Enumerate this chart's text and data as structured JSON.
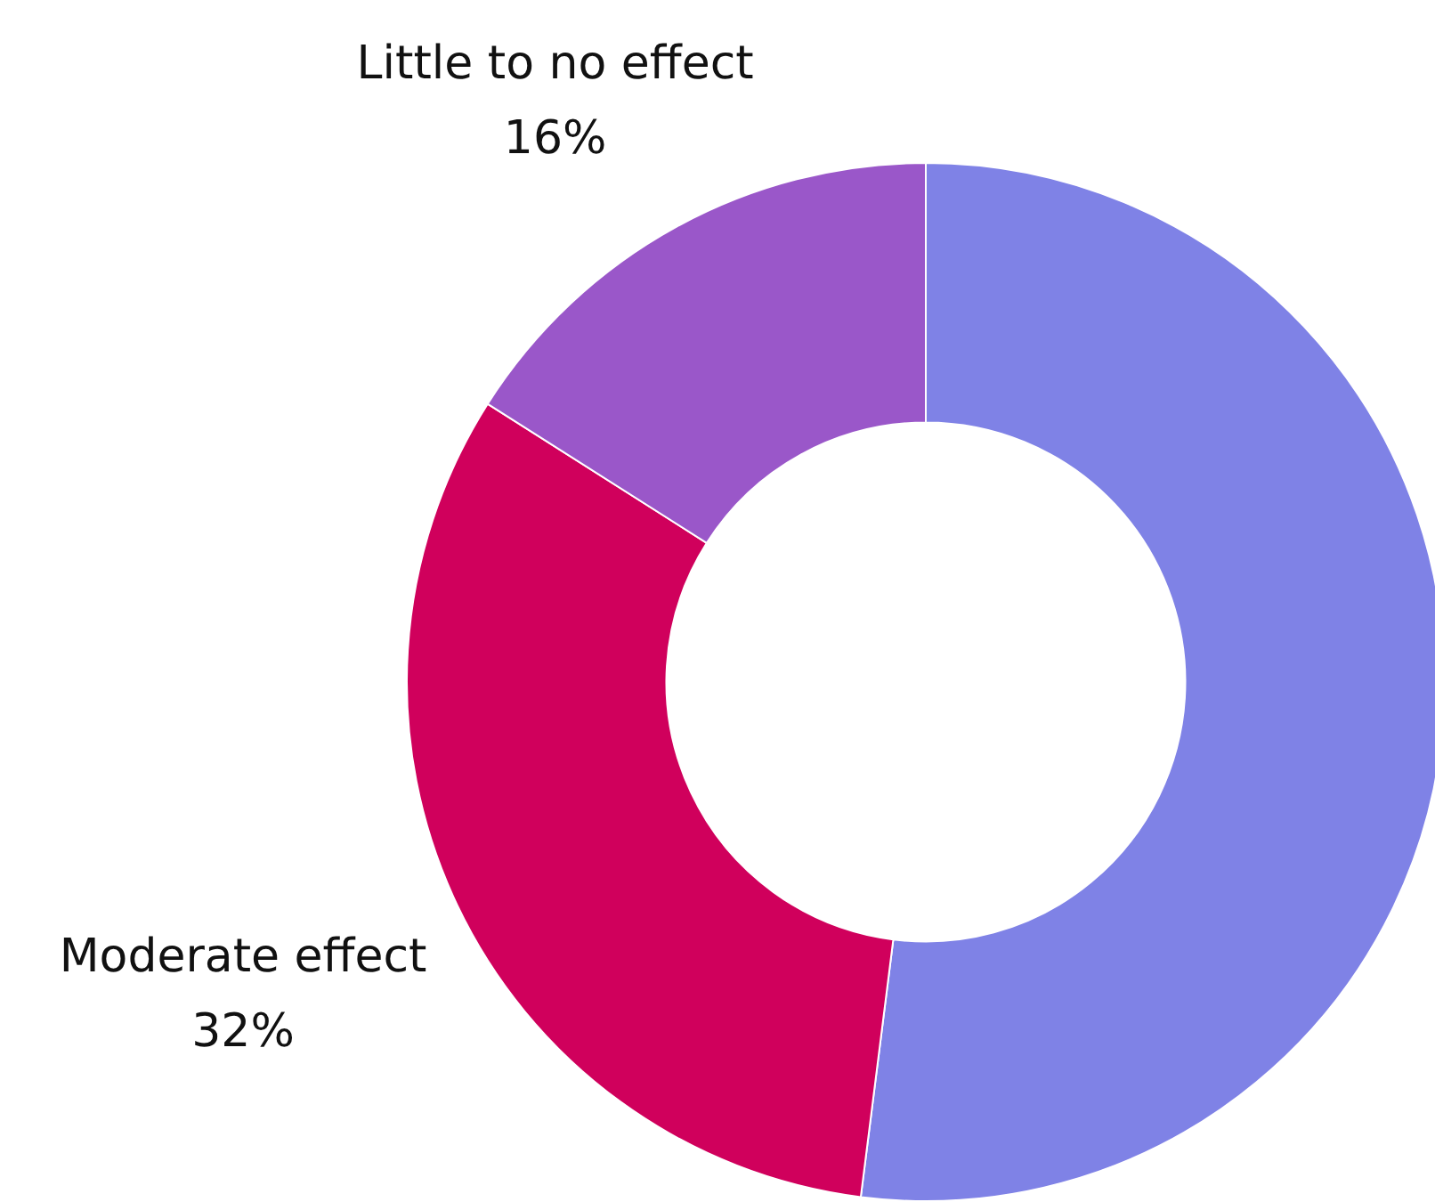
{
  "chart_data": {
    "type": "donut",
    "categories": [
      null,
      "Moderate effect",
      "Little to no effect"
    ],
    "values": [
      52,
      32,
      16
    ],
    "colors": [
      "#7f82e6",
      "#d0005c",
      "#9a57c9"
    ],
    "value_labels": [
      null,
      "32%",
      "16%"
    ],
    "legend": false
  }
}
